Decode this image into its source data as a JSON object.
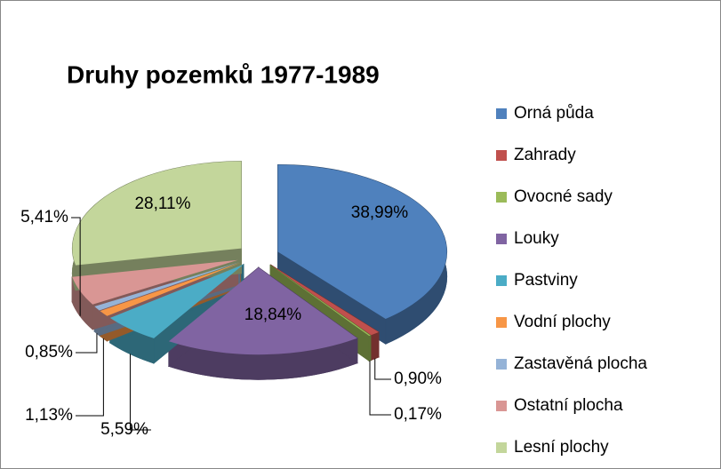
{
  "chart_data": {
    "type": "pie",
    "title": "Druhy pozemků 1977-1989",
    "categories": [
      "Orná půda",
      "Zahrady",
      "Ovocné sady",
      "Louky",
      "Pastviny",
      "Vodní plochy",
      "Zastavěná plocha",
      "Ostatní plocha",
      "Lesní plochy"
    ],
    "values": [
      38.99,
      0.9,
      0.17,
      18.84,
      5.59,
      1.13,
      0.85,
      5.41,
      28.11
    ],
    "value_labels": [
      "38,99%",
      "0,90%",
      "0,17%",
      "18,84%",
      "5,59%",
      "1,13%",
      "0,85%",
      "5,41%",
      "28,11%"
    ],
    "colors": [
      "#4f81bd",
      "#c0504d",
      "#9bbb59",
      "#8064a2",
      "#4bacc6",
      "#f79646",
      "#95b3d7",
      "#d99694",
      "#c3d69b"
    ],
    "legend": "right"
  }
}
